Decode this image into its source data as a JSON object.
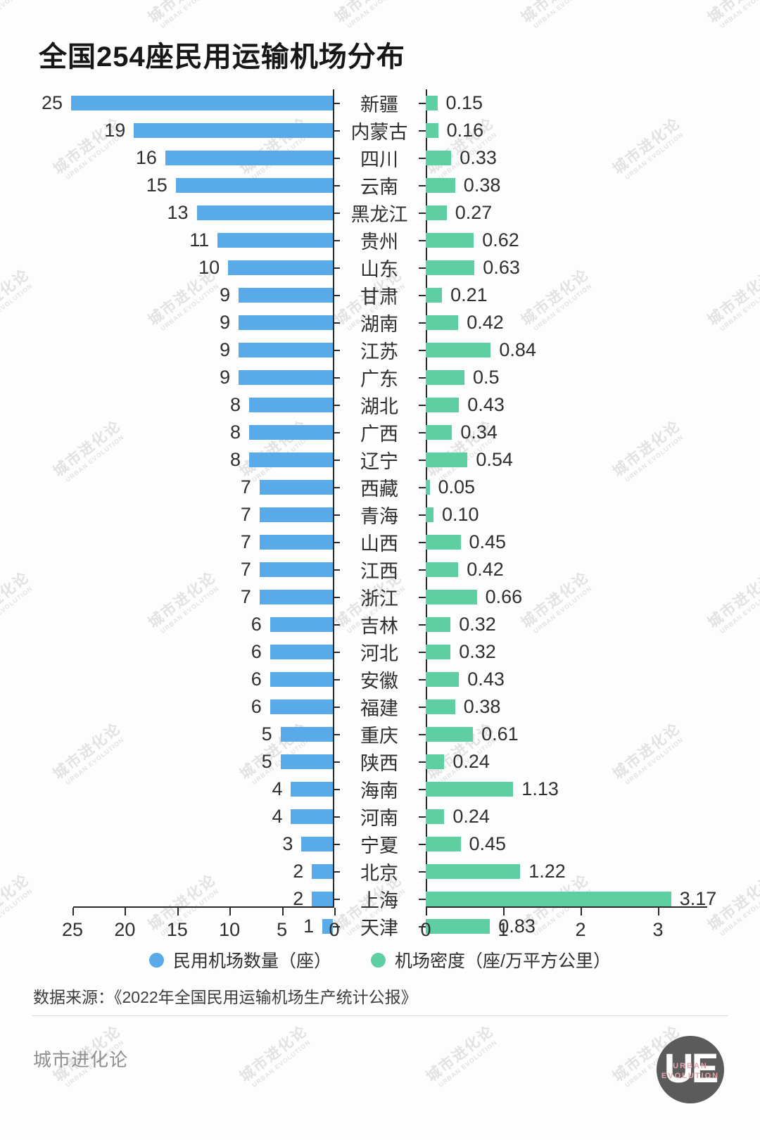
{
  "title": "全国254座民用运输机场分布",
  "chart_data": {
    "type": "bar",
    "orientation": "bidirectional-horizontal",
    "title": "全国254座民用运输机场分布",
    "categories": [
      "新疆",
      "内蒙古",
      "四川",
      "云南",
      "黑龙江",
      "贵州",
      "山东",
      "甘肃",
      "湖南",
      "江苏",
      "广东",
      "湖北",
      "广西",
      "辽宁",
      "西藏",
      "青海",
      "山西",
      "江西",
      "浙江",
      "吉林",
      "河北",
      "安徽",
      "福建",
      "重庆",
      "陕西",
      "海南",
      "河南",
      "宁夏",
      "北京",
      "上海",
      "天津"
    ],
    "series": [
      {
        "name": "民用机场数量（座）",
        "side": "left",
        "color": "#58aae8",
        "values": [
          25,
          19,
          16,
          15,
          13,
          11,
          10,
          9,
          9,
          9,
          9,
          8,
          8,
          8,
          7,
          7,
          7,
          7,
          7,
          6,
          6,
          6,
          6,
          5,
          5,
          4,
          4,
          3,
          2,
          2,
          1
        ],
        "labels": [
          "25",
          "19",
          "16",
          "15",
          "13",
          "11",
          "10",
          "9",
          "9",
          "9",
          "9",
          "8",
          "8",
          "8",
          "7",
          "7",
          "7",
          "7",
          "7",
          "6",
          "6",
          "6",
          "6",
          "5",
          "5",
          "4",
          "4",
          "3",
          "2",
          "2",
          "1"
        ],
        "axis_ticks": [
          25,
          20,
          15,
          10,
          5,
          0
        ],
        "axis_range": [
          0,
          25
        ]
      },
      {
        "name": "机场密度（座/万平方公里）",
        "side": "right",
        "color": "#5dcfa3",
        "values": [
          0.15,
          0.16,
          0.33,
          0.38,
          0.27,
          0.62,
          0.63,
          0.21,
          0.42,
          0.84,
          0.5,
          0.43,
          0.34,
          0.54,
          0.05,
          0.1,
          0.45,
          0.42,
          0.66,
          0.32,
          0.32,
          0.43,
          0.38,
          0.61,
          0.24,
          1.13,
          0.24,
          0.45,
          1.22,
          3.17,
          0.83
        ],
        "labels": [
          "0.15",
          "0.16",
          "0.33",
          "0.38",
          "0.27",
          "0.62",
          "0.63",
          "0.21",
          "0.42",
          "0.84",
          "0.5",
          "0.43",
          "0.34",
          "0.54",
          "0.05",
          "0.10",
          "0.45",
          "0.42",
          "0.66",
          "0.32",
          "0.32",
          "0.43",
          "0.38",
          "0.61",
          "0.24",
          "1.13",
          "0.24",
          "0.45",
          "1.22",
          "3.17",
          "0.83"
        ],
        "axis_ticks": [
          0,
          1,
          2,
          3
        ],
        "axis_range": [
          0,
          3.6
        ]
      }
    ],
    "grid": false,
    "legend_position": "bottom"
  },
  "legend": {
    "items": [
      {
        "label": "民用机场数量（座）",
        "color": "#58aae8"
      },
      {
        "label": "机场密度（座/万平方公里）",
        "color": "#5dcfa3"
      }
    ]
  },
  "source": "数据来源：《2022年全国民用运输机场生产统计公报》",
  "footer": {
    "brand": "城市进化论",
    "logo": {
      "letters": "UE",
      "line1": "URBAN",
      "line2": "EVOLUTION"
    }
  },
  "watermark": {
    "line1": "城市进化论",
    "line2": "URBAN EVOLUTION"
  }
}
